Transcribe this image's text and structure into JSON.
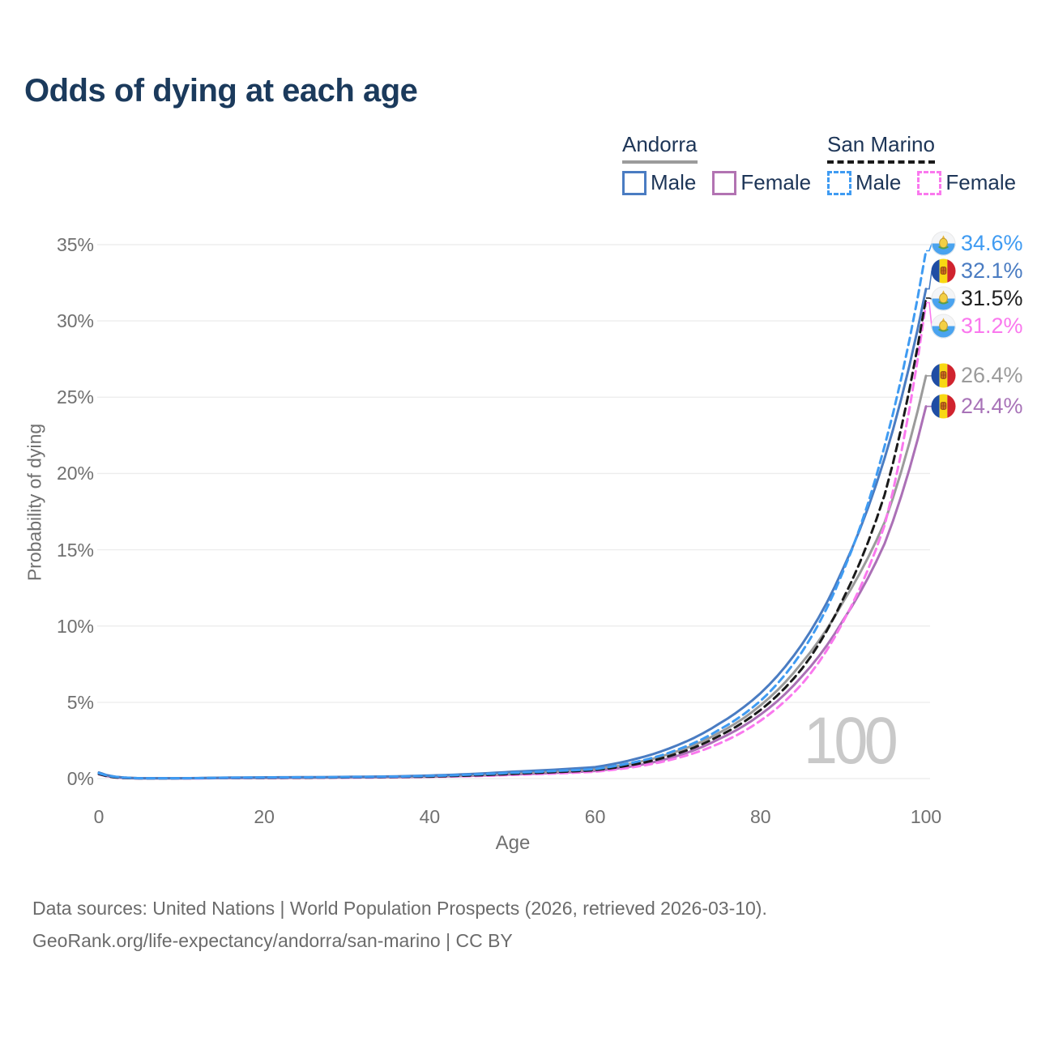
{
  "header": {
    "title": "Odds of dying at each age"
  },
  "legend": {
    "groups": [
      {
        "name": "Andorra",
        "line_style": "solid",
        "line_color": "#9b9b9b",
        "items": [
          {
            "label": "Male",
            "color": "#4a7cc2"
          },
          {
            "label": "Female",
            "color": "#b273b2"
          }
        ]
      },
      {
        "name": "San Marino",
        "line_style": "dashed",
        "line_color": "#1a1a1a",
        "items": [
          {
            "label": "Male",
            "color": "#3f9bf2"
          },
          {
            "label": "Female",
            "color": "#fa78ee"
          }
        ]
      }
    ]
  },
  "watermark": "100",
  "footer": {
    "line1": "Data sources: United Nations | World Population Prospects (2026, retrieved 2026-03-10).",
    "line2": "GeoRank.org/life-expectancy/andorra/san-marino | CC BY"
  },
  "chart_data": {
    "type": "line",
    "title": "Odds of dying at each age",
    "xlabel": "Age",
    "ylabel": "Probability of dying",
    "xlim": [
      0,
      100
    ],
    "ylim_percent": [
      0,
      35
    ],
    "x_ticks": [
      0,
      20,
      40,
      60,
      80,
      100
    ],
    "y_ticks_percent": [
      0,
      5,
      10,
      15,
      20,
      25,
      30,
      35
    ],
    "grid": "horizontal",
    "legend_position": "top-right",
    "ages": [
      0,
      5,
      10,
      15,
      20,
      25,
      30,
      35,
      40,
      45,
      50,
      55,
      60,
      65,
      70,
      75,
      80,
      85,
      90,
      95,
      100
    ],
    "series": [
      {
        "name": "San Marino — Male",
        "country": "San Marino",
        "sex": "male",
        "flag": "san-marino",
        "style": "dashed",
        "color": "#3f9bf2",
        "label_color": "#3f9bf2",
        "end_label": "34.6%",
        "end_value_percent": 34.6,
        "values_percent": [
          0.35,
          0.02,
          0.02,
          0.05,
          0.07,
          0.08,
          0.1,
          0.12,
          0.17,
          0.26,
          0.38,
          0.49,
          0.62,
          1.1,
          1.9,
          3.2,
          5.1,
          8.3,
          13.6,
          21.8,
          34.6
        ]
      },
      {
        "name": "Andorra — Male",
        "country": "Andorra",
        "sex": "male",
        "flag": "andorra",
        "style": "solid",
        "color": "#4a7cc2",
        "label_color": "#4a7cc2",
        "end_label": "32.1%",
        "end_value_percent": 32.1,
        "values_percent": [
          0.4,
          0.02,
          0.02,
          0.06,
          0.08,
          0.09,
          0.11,
          0.14,
          0.2,
          0.3,
          0.45,
          0.58,
          0.75,
          1.3,
          2.2,
          3.6,
          5.6,
          8.8,
          13.8,
          21.0,
          32.1
        ]
      },
      {
        "name": "San Marino — Both sexes",
        "country": "San Marino",
        "sex": "total",
        "flag": "san-marino",
        "style": "dashed",
        "color": "#1a1a1a",
        "label_color": "#1f1f1f",
        "end_label": "31.5%",
        "end_value_percent": 31.5,
        "values_percent": [
          0.3,
          0.01,
          0.02,
          0.04,
          0.05,
          0.06,
          0.08,
          0.1,
          0.13,
          0.2,
          0.31,
          0.42,
          0.55,
          0.95,
          1.65,
          2.8,
          4.5,
          7.2,
          11.8,
          18.6,
          31.5
        ]
      },
      {
        "name": "San Marino — Female",
        "country": "San Marino",
        "sex": "female",
        "flag": "san-marino",
        "style": "dashed",
        "color": "#fa78ee",
        "label_color": "#fa78ee",
        "end_label": "31.2%",
        "end_value_percent": 31.2,
        "values_percent": [
          0.28,
          0.01,
          0.01,
          0.03,
          0.04,
          0.05,
          0.06,
          0.08,
          0.11,
          0.16,
          0.24,
          0.33,
          0.45,
          0.78,
          1.35,
          2.3,
          3.8,
          6.2,
          10.3,
          16.6,
          31.2
        ]
      },
      {
        "name": "Andorra — Both sexes",
        "country": "Andorra",
        "sex": "total",
        "flag": "andorra",
        "style": "solid",
        "color": "#9b9b9b",
        "label_color": "#9b9b9b",
        "end_label": "26.4%",
        "end_value_percent": 26.4,
        "values_percent": [
          0.35,
          0.02,
          0.02,
          0.05,
          0.06,
          0.07,
          0.09,
          0.11,
          0.15,
          0.23,
          0.35,
          0.47,
          0.62,
          1.05,
          1.8,
          3.0,
          4.8,
          7.6,
          11.6,
          16.8,
          26.4
        ]
      },
      {
        "name": "Andorra — Female",
        "country": "Andorra",
        "sex": "female",
        "flag": "andorra",
        "style": "solid",
        "color": "#ab70b6",
        "label_color": "#a873b8",
        "end_label": "24.4%",
        "end_value_percent": 24.4,
        "values_percent": [
          0.32,
          0.01,
          0.01,
          0.03,
          0.04,
          0.05,
          0.07,
          0.09,
          0.12,
          0.18,
          0.27,
          0.37,
          0.5,
          0.85,
          1.5,
          2.6,
          4.2,
          6.7,
          10.4,
          15.4,
          24.4
        ]
      }
    ]
  }
}
